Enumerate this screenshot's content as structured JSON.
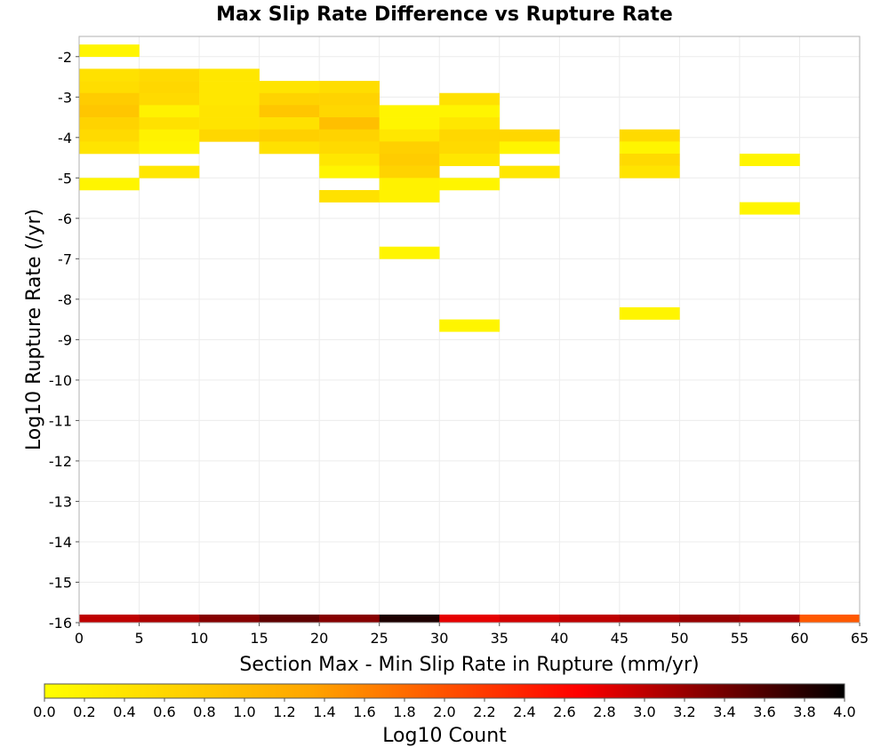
{
  "chart_data": {
    "type": "heatmap",
    "title": "Max Slip Rate Difference vs Rupture Rate",
    "xlabel": "Section Max - Min Slip Rate in Rupture (mm/yr)",
    "ylabel": "Log10 Rupture Rate (/yr)",
    "xlim": [
      0,
      65
    ],
    "ylim": [
      -16,
      -1.5
    ],
    "x_ticks": [
      "0",
      "5",
      "10",
      "15",
      "20",
      "25",
      "30",
      "35",
      "40",
      "45",
      "50",
      "55",
      "60",
      "65"
    ],
    "y_ticks": [
      "-2",
      "-3",
      "-4",
      "-5",
      "-6",
      "-7",
      "-8",
      "-9",
      "-10",
      "-11",
      "-12",
      "-13",
      "-14",
      "-15",
      "-16"
    ],
    "grid": true,
    "colorbar": {
      "label": "Log10 Count",
      "range": [
        0,
        4
      ],
      "ticks": [
        "0.0",
        "0.2",
        "0.4",
        "0.6",
        "0.8",
        "1.0",
        "1.2",
        "1.4",
        "1.6",
        "1.8",
        "2.0",
        "2.2",
        "2.4",
        "2.6",
        "2.8",
        "3.0",
        "3.2",
        "3.4",
        "3.6",
        "3.8",
        "4.0"
      ],
      "colors": [
        "#ffff00",
        "#ffa500",
        "#ff0000",
        "#000000"
      ]
    },
    "cells": [
      {
        "x0": 0,
        "x1": 5,
        "y0": -2.0,
        "y1": -1.7,
        "v": 0.15
      },
      {
        "x0": 0,
        "x1": 5,
        "y0": -2.6,
        "y1": -2.3,
        "v": 0.45
      },
      {
        "x0": 0,
        "x1": 5,
        "y0": -2.9,
        "y1": -2.6,
        "v": 0.5
      },
      {
        "x0": 0,
        "x1": 5,
        "y0": -3.2,
        "y1": -2.9,
        "v": 0.75
      },
      {
        "x0": 0,
        "x1": 5,
        "y0": -3.5,
        "y1": -3.2,
        "v": 0.85
      },
      {
        "x0": 0,
        "x1": 5,
        "y0": -3.8,
        "y1": -3.5,
        "v": 0.65
      },
      {
        "x0": 0,
        "x1": 5,
        "y0": -4.1,
        "y1": -3.8,
        "v": 0.55
      },
      {
        "x0": 0,
        "x1": 5,
        "y0": -4.4,
        "y1": -4.1,
        "v": 0.4
      },
      {
        "x0": 0,
        "x1": 5,
        "y0": -5.3,
        "y1": -5.0,
        "v": 0.15
      },
      {
        "x0": 5,
        "x1": 10,
        "y0": -2.6,
        "y1": -2.3,
        "v": 0.55
      },
      {
        "x0": 5,
        "x1": 10,
        "y0": -2.9,
        "y1": -2.6,
        "v": 0.6
      },
      {
        "x0": 5,
        "x1": 10,
        "y0": -3.2,
        "y1": -2.9,
        "v": 0.55
      },
      {
        "x0": 5,
        "x1": 10,
        "y0": -3.5,
        "y1": -3.2,
        "v": 0.2
      },
      {
        "x0": 5,
        "x1": 10,
        "y0": -3.8,
        "y1": -3.5,
        "v": 0.45
      },
      {
        "x0": 5,
        "x1": 10,
        "y0": -4.1,
        "y1": -3.8,
        "v": 0.2
      },
      {
        "x0": 5,
        "x1": 10,
        "y0": -4.4,
        "y1": -4.1,
        "v": 0.15
      },
      {
        "x0": 5,
        "x1": 10,
        "y0": -5.0,
        "y1": -4.7,
        "v": 0.35
      },
      {
        "x0": 10,
        "x1": 15,
        "y0": -2.6,
        "y1": -2.3,
        "v": 0.35
      },
      {
        "x0": 10,
        "x1": 15,
        "y0": -2.9,
        "y1": -2.6,
        "v": 0.35
      },
      {
        "x0": 10,
        "x1": 15,
        "y0": -3.2,
        "y1": -2.9,
        "v": 0.35
      },
      {
        "x0": 10,
        "x1": 15,
        "y0": -3.5,
        "y1": -3.2,
        "v": 0.4
      },
      {
        "x0": 10,
        "x1": 15,
        "y0": -3.8,
        "y1": -3.5,
        "v": 0.4
      },
      {
        "x0": 10,
        "x1": 15,
        "y0": -4.1,
        "y1": -3.8,
        "v": 0.6
      },
      {
        "x0": 15,
        "x1": 20,
        "y0": -2.9,
        "y1": -2.6,
        "v": 0.4
      },
      {
        "x0": 15,
        "x1": 20,
        "y0": -3.2,
        "y1": -2.9,
        "v": 0.65
      },
      {
        "x0": 15,
        "x1": 20,
        "y0": -3.5,
        "y1": -3.2,
        "v": 0.85
      },
      {
        "x0": 15,
        "x1": 20,
        "y0": -3.8,
        "y1": -3.5,
        "v": 0.45
      },
      {
        "x0": 15,
        "x1": 20,
        "y0": -4.1,
        "y1": -3.8,
        "v": 0.7
      },
      {
        "x0": 15,
        "x1": 20,
        "y0": -4.4,
        "y1": -4.1,
        "v": 0.45
      },
      {
        "x0": 20,
        "x1": 25,
        "y0": -2.9,
        "y1": -2.6,
        "v": 0.5
      },
      {
        "x0": 20,
        "x1": 25,
        "y0": -3.2,
        "y1": -2.9,
        "v": 0.65
      },
      {
        "x0": 20,
        "x1": 25,
        "y0": -3.5,
        "y1": -3.2,
        "v": 0.6
      },
      {
        "x0": 20,
        "x1": 25,
        "y0": -3.8,
        "y1": -3.5,
        "v": 0.95
      },
      {
        "x0": 20,
        "x1": 25,
        "y0": -4.1,
        "y1": -3.8,
        "v": 0.65
      },
      {
        "x0": 20,
        "x1": 25,
        "y0": -4.4,
        "y1": -4.1,
        "v": 0.55
      },
      {
        "x0": 20,
        "x1": 25,
        "y0": -4.7,
        "y1": -4.4,
        "v": 0.35
      },
      {
        "x0": 20,
        "x1": 25,
        "y0": -5.0,
        "y1": -4.7,
        "v": 0.15
      },
      {
        "x0": 20,
        "x1": 25,
        "y0": -5.6,
        "y1": -5.3,
        "v": 0.45
      },
      {
        "x0": 25,
        "x1": 30,
        "y0": -3.5,
        "y1": -3.2,
        "v": 0.15
      },
      {
        "x0": 25,
        "x1": 30,
        "y0": -3.8,
        "y1": -3.5,
        "v": 0.15
      },
      {
        "x0": 25,
        "x1": 30,
        "y0": -4.1,
        "y1": -3.8,
        "v": 0.35
      },
      {
        "x0": 25,
        "x1": 30,
        "y0": -4.4,
        "y1": -4.1,
        "v": 0.7
      },
      {
        "x0": 25,
        "x1": 30,
        "y0": -4.7,
        "y1": -4.4,
        "v": 0.75
      },
      {
        "x0": 25,
        "x1": 30,
        "y0": -5.0,
        "y1": -4.7,
        "v": 0.65
      },
      {
        "x0": 25,
        "x1": 30,
        "y0": -5.3,
        "y1": -5.0,
        "v": 0.2
      },
      {
        "x0": 25,
        "x1": 30,
        "y0": -5.6,
        "y1": -5.3,
        "v": 0.2
      },
      {
        "x0": 25,
        "x1": 30,
        "y0": -7.0,
        "y1": -6.7,
        "v": 0.15
      },
      {
        "x0": 30,
        "x1": 35,
        "y0": -3.2,
        "y1": -2.9,
        "v": 0.45
      },
      {
        "x0": 30,
        "x1": 35,
        "y0": -3.5,
        "y1": -3.2,
        "v": 0.15
      },
      {
        "x0": 30,
        "x1": 35,
        "y0": -3.8,
        "y1": -3.5,
        "v": 0.35
      },
      {
        "x0": 30,
        "x1": 35,
        "y0": -4.1,
        "y1": -3.8,
        "v": 0.6
      },
      {
        "x0": 30,
        "x1": 35,
        "y0": -4.4,
        "y1": -4.1,
        "v": 0.55
      },
      {
        "x0": 30,
        "x1": 35,
        "y0": -4.7,
        "y1": -4.4,
        "v": 0.35
      },
      {
        "x0": 30,
        "x1": 35,
        "y0": -5.3,
        "y1": -5.0,
        "v": 0.15
      },
      {
        "x0": 30,
        "x1": 35,
        "y0": -8.8,
        "y1": -8.5,
        "v": 0.15
      },
      {
        "x0": 35,
        "x1": 40,
        "y0": -4.1,
        "y1": -3.8,
        "v": 0.6
      },
      {
        "x0": 35,
        "x1": 40,
        "y0": -4.4,
        "y1": -4.1,
        "v": 0.15
      },
      {
        "x0": 35,
        "x1": 40,
        "y0": -5.0,
        "y1": -4.7,
        "v": 0.35
      },
      {
        "x0": 45,
        "x1": 50,
        "y0": -4.1,
        "y1": -3.8,
        "v": 0.55
      },
      {
        "x0": 45,
        "x1": 50,
        "y0": -4.4,
        "y1": -4.1,
        "v": 0.15
      },
      {
        "x0": 45,
        "x1": 50,
        "y0": -4.7,
        "y1": -4.4,
        "v": 0.55
      },
      {
        "x0": 45,
        "x1": 50,
        "y0": -5.0,
        "y1": -4.7,
        "v": 0.4
      },
      {
        "x0": 45,
        "x1": 50,
        "y0": -8.5,
        "y1": -8.2,
        "v": 0.15
      },
      {
        "x0": 55,
        "x1": 60,
        "y0": -4.7,
        "y1": -4.4,
        "v": 0.15
      },
      {
        "x0": 55,
        "x1": 60,
        "y0": -5.9,
        "y1": -5.6,
        "v": 0.15
      },
      {
        "x0": 0,
        "x1": 5,
        "y0": -16.0,
        "y1": -15.8,
        "v": 3.0
      },
      {
        "x0": 5,
        "x1": 10,
        "y0": -16.0,
        "y1": -15.8,
        "v": 3.1
      },
      {
        "x0": 10,
        "x1": 15,
        "y0": -16.0,
        "y1": -15.8,
        "v": 3.3
      },
      {
        "x0": 15,
        "x1": 20,
        "y0": -16.0,
        "y1": -15.8,
        "v": 3.5
      },
      {
        "x0": 20,
        "x1": 25,
        "y0": -16.0,
        "y1": -15.8,
        "v": 3.3
      },
      {
        "x0": 25,
        "x1": 30,
        "y0": -16.0,
        "y1": -15.8,
        "v": 3.85
      },
      {
        "x0": 30,
        "x1": 35,
        "y0": -16.0,
        "y1": -15.8,
        "v": 2.8
      },
      {
        "x0": 35,
        "x1": 40,
        "y0": -16.0,
        "y1": -15.8,
        "v": 2.9
      },
      {
        "x0": 40,
        "x1": 45,
        "y0": -16.0,
        "y1": -15.8,
        "v": 3.0
      },
      {
        "x0": 45,
        "x1": 50,
        "y0": -16.0,
        "y1": -15.8,
        "v": 3.1
      },
      {
        "x0": 50,
        "x1": 55,
        "y0": -16.0,
        "y1": -15.8,
        "v": 3.2
      },
      {
        "x0": 55,
        "x1": 60,
        "y0": -16.0,
        "y1": -15.8,
        "v": 3.1
      },
      {
        "x0": 60,
        "x1": 65,
        "y0": -16.0,
        "y1": -15.8,
        "v": 1.95
      }
    ]
  }
}
